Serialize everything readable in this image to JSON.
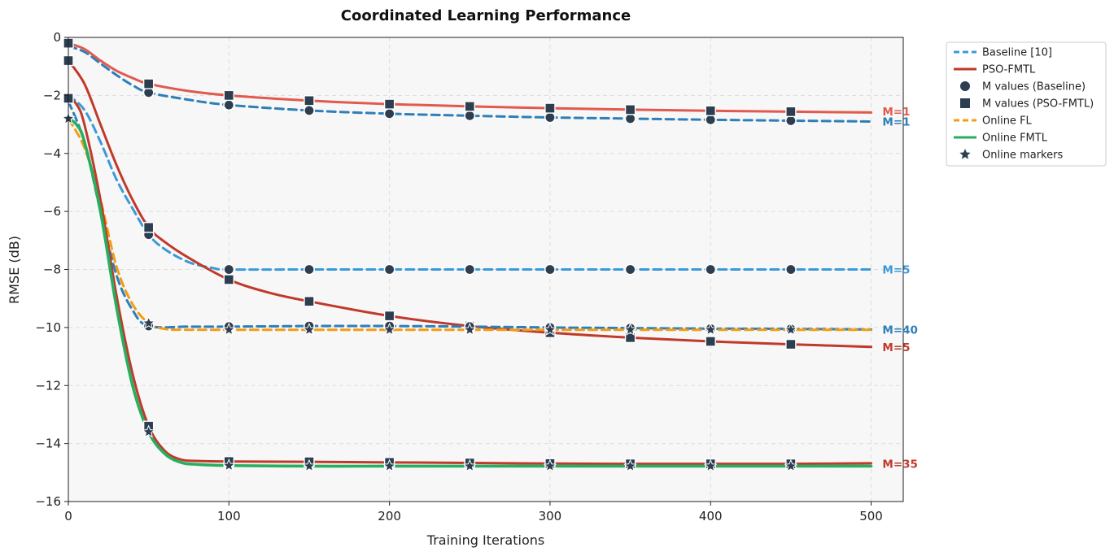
{
  "chart_data": {
    "type": "line",
    "title": "Coordinated Learning Performance",
    "xlabel": "Training Iterations",
    "ylabel": "RMSE (dB)",
    "xlim": [
      0,
      520
    ],
    "ylim": [
      -16,
      0
    ],
    "xticks": [
      0,
      100,
      200,
      300,
      400,
      500
    ],
    "yticks": [
      0,
      -2,
      -4,
      -6,
      -8,
      -10,
      -12,
      -14,
      -16
    ],
    "xtick_labels": [
      "0",
      "100",
      "200",
      "300",
      "400",
      "500"
    ],
    "ytick_labels": [
      "0",
      "−2",
      "−4",
      "−6",
      "−8",
      "−10",
      "−12",
      "−14",
      "−16"
    ],
    "grid": true,
    "legend_position": "outside-right",
    "colors": {
      "baseline_m1": "#2e7fb8",
      "baseline_m5": "#3a9ad9",
      "pso_m1": "#e05a4e",
      "pso": "#c0392b",
      "online_fl": "#f39c12",
      "online_fmtl": "#27ae60",
      "marker": "#2c3e50",
      "plot_bg": "#f7f7f7"
    },
    "legend": [
      {
        "label": "Baseline [10]",
        "kind": "dashed-line",
        "color": "#3a9ad9"
      },
      {
        "label": "PSO-FMTL",
        "kind": "solid-line",
        "color": "#c0392b"
      },
      {
        "label": "M values (Baseline)",
        "kind": "circle",
        "color": "#2c3e50"
      },
      {
        "label": "M values (PSO-FMTL)",
        "kind": "square",
        "color": "#2c3e50"
      },
      {
        "label": "Online FL",
        "kind": "dashed-line",
        "color": "#f39c12"
      },
      {
        "label": "Online FMTL",
        "kind": "solid-line",
        "color": "#27ae60"
      },
      {
        "label": "Online markers",
        "kind": "star",
        "color": "#2c3e50"
      }
    ],
    "series": [
      {
        "group": "Baseline [10]",
        "M": "M=1",
        "style": "dashed",
        "color": "#2e7fb8",
        "marker": "circle",
        "x": [
          0,
          10,
          20,
          30,
          40,
          50,
          75,
          100,
          150,
          200,
          250,
          300,
          350,
          400,
          450,
          500
        ],
        "y": [
          -0.3,
          -0.5,
          -0.9,
          -1.3,
          -1.65,
          -1.9,
          -2.15,
          -2.33,
          -2.52,
          -2.63,
          -2.7,
          -2.76,
          -2.8,
          -2.84,
          -2.87,
          -2.9
        ]
      },
      {
        "group": "PSO-FMTL",
        "M": "M=1",
        "style": "solid",
        "color": "#e05a4e",
        "marker": "square",
        "x": [
          0,
          10,
          20,
          30,
          40,
          50,
          75,
          100,
          150,
          200,
          250,
          300,
          350,
          400,
          450,
          500
        ],
        "y": [
          -0.2,
          -0.4,
          -0.8,
          -1.15,
          -1.4,
          -1.6,
          -1.85,
          -2.0,
          -2.18,
          -2.3,
          -2.38,
          -2.44,
          -2.49,
          -2.53,
          -2.56,
          -2.59
        ]
      },
      {
        "group": "Baseline [10]",
        "M": "M=5",
        "style": "dashed",
        "color": "#3a9ad9",
        "marker": "circle",
        "x": [
          0,
          10,
          20,
          30,
          40,
          50,
          60,
          75,
          90,
          100,
          150,
          200,
          250,
          300,
          350,
          400,
          450,
          500
        ],
        "y": [
          -2.0,
          -2.5,
          -3.6,
          -4.9,
          -5.9,
          -6.8,
          -7.3,
          -7.75,
          -7.95,
          -8.0,
          -8.0,
          -8.0,
          -8.0,
          -8.0,
          -8.0,
          -8.0,
          -8.0,
          -8.0
        ]
      },
      {
        "group": "PSO-FMTL",
        "M": "M=5",
        "style": "solid",
        "color": "#c0392b",
        "marker": "square",
        "x": [
          0,
          10,
          20,
          30,
          40,
          50,
          60,
          75,
          100,
          125,
          150,
          200,
          250,
          300,
          350,
          400,
          450,
          500
        ],
        "y": [
          -0.8,
          -1.6,
          -3.0,
          -4.4,
          -5.6,
          -6.55,
          -7.05,
          -7.6,
          -8.35,
          -8.8,
          -9.1,
          -9.6,
          -9.95,
          -10.18,
          -10.35,
          -10.48,
          -10.58,
          -10.67
        ]
      },
      {
        "group": "Baseline [10]",
        "M": "M=40",
        "style": "dashed",
        "color": "#2e7fb8",
        "marker": "circle",
        "x": [
          0,
          10,
          20,
          30,
          40,
          50,
          75,
          100,
          150,
          200,
          250,
          300,
          350,
          400,
          450,
          500
        ],
        "y": [
          -2.2,
          -3.6,
          -6.0,
          -8.2,
          -9.4,
          -9.95,
          -9.97,
          -9.97,
          -9.95,
          -9.95,
          -9.97,
          -10.0,
          -10.02,
          -10.04,
          -10.05,
          -10.07
        ]
      },
      {
        "group": "Online FL",
        "style": "dashed",
        "color": "#f39c12",
        "marker": "star",
        "x": [
          0,
          10,
          20,
          30,
          40,
          50,
          60,
          75,
          100,
          150,
          200,
          250,
          300,
          350,
          400,
          450,
          500
        ],
        "y": [
          -2.8,
          -3.8,
          -5.6,
          -7.9,
          -9.2,
          -9.85,
          -10.05,
          -10.08,
          -10.08,
          -10.08,
          -10.08,
          -10.08,
          -10.08,
          -10.08,
          -10.08,
          -10.08,
          -10.08
        ]
      },
      {
        "group": "PSO-FMTL",
        "M": "M=35",
        "style": "solid",
        "color": "#c0392b",
        "marker": "square",
        "x": [
          0,
          5,
          10,
          20,
          30,
          40,
          50,
          60,
          70,
          80,
          100,
          150,
          200,
          250,
          300,
          350,
          400,
          450,
          500
        ],
        "y": [
          -2.1,
          -2.3,
          -3.0,
          -5.6,
          -8.9,
          -11.6,
          -13.4,
          -14.25,
          -14.55,
          -14.6,
          -14.62,
          -14.63,
          -14.65,
          -14.67,
          -14.69,
          -14.7,
          -14.7,
          -14.7,
          -14.68
        ]
      },
      {
        "group": "Online FMTL",
        "style": "solid",
        "color": "#27ae60",
        "marker": "star",
        "x": [
          0,
          5,
          10,
          20,
          30,
          40,
          50,
          60,
          70,
          80,
          100,
          150,
          200,
          250,
          300,
          350,
          400,
          450,
          500
        ],
        "y": [
          -2.8,
          -3.0,
          -3.6,
          -6.0,
          -9.3,
          -12.0,
          -13.6,
          -14.35,
          -14.65,
          -14.72,
          -14.76,
          -14.78,
          -14.78,
          -14.78,
          -14.78,
          -14.78,
          -14.78,
          -14.78,
          -14.78
        ]
      }
    ],
    "markers": {
      "circle_x": [
        50,
        100,
        150,
        200,
        250,
        300,
        350,
        400,
        450
      ],
      "square_x": [
        0,
        50,
        100,
        150,
        200,
        250,
        300,
        350,
        400,
        450
      ],
      "star_x": [
        0,
        50,
        100,
        150,
        200,
        250,
        300,
        350,
        400,
        450
      ]
    },
    "annotations": [
      {
        "text": "M=1",
        "x": 505,
        "y": -2.55,
        "color": "#e05a4e"
      },
      {
        "text": "M=1",
        "x": 505,
        "y": -2.9,
        "color": "#2e7fb8"
      },
      {
        "text": "M=5",
        "x": 505,
        "y": -8.0,
        "color": "#3a9ad9"
      },
      {
        "text": "M=40",
        "x": 505,
        "y": -10.07,
        "color": "#2e7fb8"
      },
      {
        "text": "M=5",
        "x": 505,
        "y": -10.67,
        "color": "#c0392b"
      },
      {
        "text": "M=35",
        "x": 505,
        "y": -14.7,
        "color": "#c0392b"
      }
    ]
  }
}
